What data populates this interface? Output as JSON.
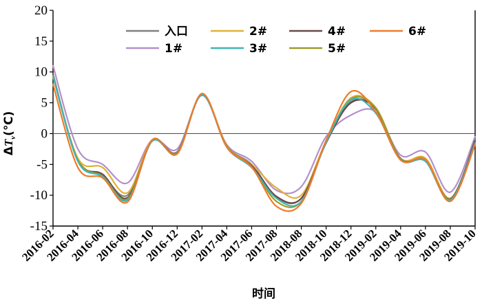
{
  "chart_data": {
    "type": "line",
    "ylabel": "ΔTv(℃)",
    "xlabel": "时间",
    "ylim": [
      -15,
      20
    ],
    "yticks": [
      20,
      15,
      10,
      5,
      0,
      -5,
      -10,
      -15
    ],
    "x_categories": [
      "2016-02",
      "2016-04",
      "2016-06",
      "2016-08",
      "2016-10",
      "2016-12",
      "2017-02",
      "2017-04",
      "2017-06",
      "2017-08",
      "2018-08",
      "2018-10",
      "2018-12",
      "2019-02",
      "2019-04",
      "2019-06",
      "2019-08",
      "2019-10"
    ],
    "reference_line": 0,
    "legend": {
      "placement": "top",
      "columns": 4
    },
    "series": [
      {
        "name": "入口",
        "color": "#7f7f7f",
        "values": [
          9.5,
          -4.2,
          -6.8,
          -10.0,
          -1.2,
          -3.0,
          6.3,
          -2.0,
          -5.0,
          -10.3,
          -10.5,
          -1.5,
          5.2,
          4.0,
          -4.2,
          -4.5,
          -10.8,
          -1.0
        ]
      },
      {
        "name": "1#",
        "color": "#b48fcb",
        "values": [
          11.0,
          -2.5,
          -5.0,
          -8.0,
          -1.0,
          -2.5,
          6.2,
          -1.8,
          -4.5,
          -9.2,
          -8.6,
          -0.5,
          3.0,
          3.5,
          -3.5,
          -3.0,
          -9.5,
          -0.5
        ]
      },
      {
        "name": "2#",
        "color": "#e0b135",
        "values": [
          9.2,
          -4.0,
          -5.5,
          -9.6,
          -1.0,
          -3.0,
          6.4,
          -2.0,
          -5.0,
          -8.8,
          -10.0,
          -1.2,
          5.8,
          4.2,
          -4.0,
          -4.0,
          -10.5,
          -1.5
        ]
      },
      {
        "name": "3#",
        "color": "#3db6b6",
        "values": [
          9.4,
          -4.5,
          -7.0,
          -10.8,
          -1.2,
          -3.2,
          6.3,
          -2.2,
          -5.5,
          -10.5,
          -11.0,
          -1.4,
          5.5,
          3.3,
          -4.2,
          -4.5,
          -10.8,
          -1.5
        ]
      },
      {
        "name": "4#",
        "color": "#6a4848",
        "values": [
          9.6,
          -4.4,
          -6.6,
          -10.4,
          -1.1,
          -3.0,
          6.3,
          -2.1,
          -5.2,
          -10.2,
          -10.5,
          -1.5,
          5.0,
          4.0,
          -4.1,
          -4.4,
          -10.6,
          -1.2
        ]
      },
      {
        "name": "5#",
        "color": "#9e9a28",
        "values": [
          9.4,
          -4.3,
          -6.9,
          -10.6,
          -1.1,
          -3.1,
          6.4,
          -2.0,
          -5.4,
          -11.0,
          -11.0,
          -1.3,
          5.6,
          4.1,
          -4.2,
          -4.3,
          -10.7,
          -1.6
        ]
      },
      {
        "name": "6#",
        "color": "#f07a2a",
        "values": [
          8.0,
          -5.5,
          -7.2,
          -11.1,
          -1.0,
          -3.3,
          6.5,
          -2.2,
          -5.4,
          -11.8,
          -11.3,
          -1.1,
          6.8,
          3.5,
          -4.3,
          -4.2,
          -11.0,
          -1.8
        ]
      }
    ]
  }
}
